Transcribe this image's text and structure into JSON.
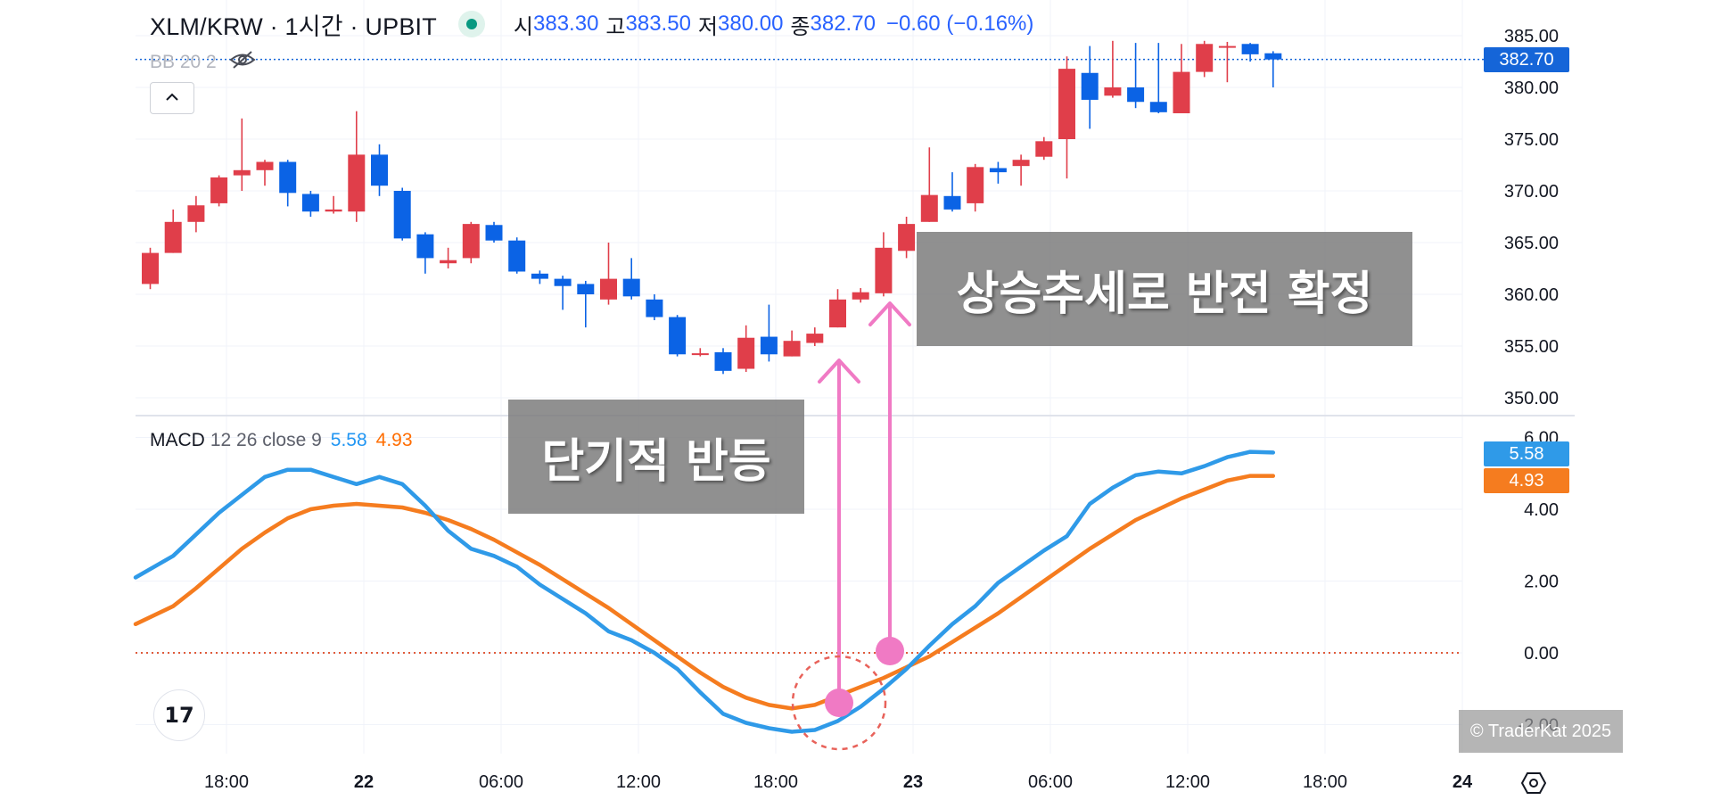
{
  "header": {
    "symbol": "XLM/KRW · 1시간 · UPBIT",
    "open_label": "시",
    "open": "383.30",
    "high_label": "고",
    "high": "383.50",
    "low_label": "저",
    "low": "380.00",
    "close_label": "종",
    "close": "382.70",
    "change": "−0.60 (−0.16%)"
  },
  "bb_indicator": "BB 20 2",
  "macd_indicator": {
    "name": "MACD",
    "params": "12 26 close 9",
    "macd_value": "5.58",
    "signal_value": "4.93"
  },
  "callouts": {
    "short_rebound": "단기적 반등",
    "uptrend_confirmed": "상승추세로 반전 확정"
  },
  "watermark": "© TraderKat 2025",
  "logo_text": "17",
  "colors": {
    "up": "#e03e4a",
    "down": "#0b63e5",
    "macd": "#2f9ae8",
    "signal": "#f57c1f",
    "arrow": "#f07ac4",
    "price_tag": "#1565d8"
  },
  "chart_data": [
    {
      "type": "candlestick",
      "title": "XLM/KRW · 1시간 · UPBIT",
      "x_ticks": [
        "18:00",
        "22",
        "06:00",
        "12:00",
        "18:00",
        "23",
        "06:00",
        "12:00",
        "18:00",
        "24"
      ],
      "y_ticks": [
        "350.00",
        "355.00",
        "360.00",
        "365.00",
        "370.00",
        "375.00",
        "380.00",
        "385.00"
      ],
      "ylim": [
        347.5,
        387.5
      ],
      "last_price": 382.7,
      "last_price_label": "382.70",
      "grid": true,
      "candles": [
        [
          361.0,
          364.5,
          360.5,
          364.0
        ],
        [
          364.0,
          368.2,
          364.0,
          367.0
        ],
        [
          367.0,
          369.5,
          366.0,
          368.6
        ],
        [
          368.8,
          371.5,
          368.5,
          371.3
        ],
        [
          371.5,
          377.0,
          370.0,
          372.0
        ],
        [
          372.0,
          373.0,
          370.5,
          372.8
        ],
        [
          372.8,
          373.0,
          368.5,
          369.8
        ],
        [
          369.7,
          370.0,
          367.5,
          368.0
        ],
        [
          368.0,
          369.5,
          367.8,
          368.2
        ],
        [
          368.0,
          377.7,
          367.0,
          373.5
        ],
        [
          373.5,
          374.5,
          369.5,
          370.5
        ],
        [
          370.0,
          370.3,
          365.2,
          365.4
        ],
        [
          365.8,
          366.0,
          362.0,
          363.5
        ],
        [
          363.0,
          364.5,
          362.5,
          363.3
        ],
        [
          363.5,
          367.0,
          363.0,
          366.8
        ],
        [
          366.7,
          367.0,
          365.0,
          365.2
        ],
        [
          365.2,
          365.5,
          362.0,
          362.2
        ],
        [
          362.0,
          362.3,
          361.0,
          361.5
        ],
        [
          361.5,
          361.8,
          358.5,
          360.8
        ],
        [
          361.0,
          361.3,
          356.8,
          360.0
        ],
        [
          359.5,
          365.0,
          359.0,
          361.5
        ],
        [
          361.5,
          363.5,
          359.5,
          359.8
        ],
        [
          359.5,
          360.0,
          357.5,
          357.8
        ],
        [
          357.8,
          358.0,
          354.0,
          354.2
        ],
        [
          354.2,
          354.8,
          354.0,
          354.3
        ],
        [
          354.4,
          354.8,
          352.3,
          352.6
        ],
        [
          352.8,
          357.0,
          352.5,
          355.8
        ],
        [
          355.9,
          359.0,
          353.5,
          354.2
        ],
        [
          354.0,
          356.5,
          354.0,
          355.5
        ],
        [
          355.3,
          356.8,
          355.0,
          356.2
        ],
        [
          356.8,
          360.5,
          356.8,
          359.5
        ],
        [
          359.5,
          360.6,
          359.2,
          360.2
        ],
        [
          360.1,
          366.0,
          359.8,
          364.5
        ],
        [
          364.2,
          367.5,
          363.5,
          366.8
        ],
        [
          367.0,
          374.2,
          367.0,
          369.6
        ],
        [
          369.5,
          371.8,
          368.0,
          368.2
        ],
        [
          368.8,
          372.6,
          368.0,
          372.3
        ],
        [
          372.2,
          372.8,
          370.7,
          371.8
        ],
        [
          372.4,
          373.5,
          370.5,
          373.0
        ],
        [
          373.3,
          375.2,
          373.0,
          374.8
        ],
        [
          375.0,
          383.0,
          371.2,
          381.8
        ],
        [
          381.4,
          384.0,
          376.0,
          378.8
        ],
        [
          379.2,
          384.5,
          379.0,
          380.0
        ],
        [
          380.0,
          384.3,
          378.0,
          378.6
        ],
        [
          378.6,
          384.3,
          377.5,
          377.6
        ],
        [
          377.5,
          384.2,
          377.5,
          381.5
        ],
        [
          381.5,
          384.5,
          381.0,
          384.2
        ],
        [
          384.0,
          384.4,
          380.5,
          384.0
        ],
        [
          384.2,
          384.3,
          382.5,
          383.2
        ],
        [
          383.3,
          383.5,
          380.0,
          382.7
        ]
      ]
    },
    {
      "type": "line",
      "title": "MACD 12 26 close 9",
      "y_ticks": [
        "-2.00",
        "0.00",
        "2.00",
        "4.00",
        "6.00"
      ],
      "ylim": [
        -3.0,
        6.0
      ],
      "zero_line": 0,
      "series": [
        {
          "name": "MACD",
          "color": "#2f9ae8",
          "last_label": "5.58",
          "values": [
            2.1,
            2.7,
            3.3,
            3.9,
            4.4,
            4.9,
            5.1,
            5.1,
            4.9,
            4.7,
            4.9,
            4.7,
            4.1,
            3.4,
            2.9,
            2.7,
            2.4,
            1.9,
            1.5,
            1.1,
            0.6,
            0.35,
            0.0,
            -0.45,
            -1.1,
            -1.7,
            -1.95,
            -2.1,
            -2.2,
            -2.15,
            -1.9,
            -1.5,
            -1.0,
            -0.45,
            0.2,
            0.8,
            1.3,
            1.95,
            2.4,
            2.85,
            3.25,
            4.15,
            4.6,
            4.95,
            5.05,
            5.0,
            5.2,
            5.45,
            5.6,
            5.58
          ]
        },
        {
          "name": "Signal",
          "color": "#f57c1f",
          "last_label": "4.93",
          "values": [
            0.8,
            1.3,
            1.8,
            2.35,
            2.9,
            3.35,
            3.75,
            4.0,
            4.1,
            4.15,
            4.1,
            4.05,
            3.9,
            3.7,
            3.45,
            3.15,
            2.8,
            2.45,
            2.05,
            1.65,
            1.25,
            0.8,
            0.35,
            -0.1,
            -0.55,
            -0.95,
            -1.25,
            -1.45,
            -1.55,
            -1.45,
            -1.2,
            -0.95,
            -0.7,
            -0.4,
            -0.1,
            0.3,
            0.7,
            1.1,
            1.55,
            2.0,
            2.45,
            2.9,
            3.3,
            3.7,
            4.0,
            4.3,
            4.55,
            4.8,
            4.93,
            4.93
          ]
        }
      ]
    }
  ]
}
